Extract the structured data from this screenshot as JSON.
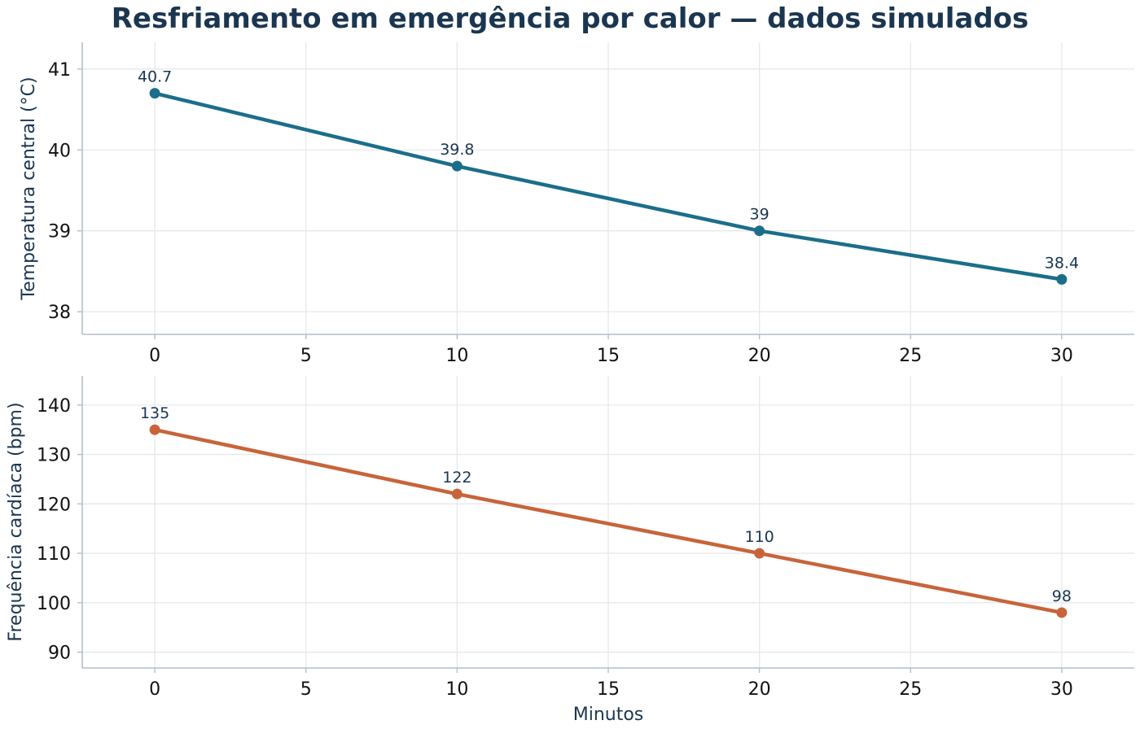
{
  "title": "Resfriamento em emergência por calor — dados simulados",
  "chart_data": [
    {
      "type": "line",
      "x": [
        0,
        10,
        20,
        30
      ],
      "y": [
        40.7,
        39.8,
        39.0,
        38.4
      ],
      "data_labels": [
        "40.7",
        "39.8",
        "39",
        "38.4"
      ],
      "ylabel": "Temperatura central (°C)",
      "xlabel": "",
      "xlim": [
        -2.4,
        32.4
      ],
      "ylim": [
        37.72,
        41.33
      ],
      "xticks": [
        0,
        5,
        10,
        15,
        20,
        25,
        30
      ],
      "xtick_labels": [
        "0",
        "5",
        "10",
        "15",
        "20",
        "25",
        "30"
      ],
      "yticks": [
        38,
        39,
        40,
        41
      ],
      "ytick_labels": [
        "38",
        "39",
        "40",
        "41"
      ],
      "color": "#1b6e8a",
      "grid": true
    },
    {
      "type": "line",
      "x": [
        0,
        10,
        20,
        30
      ],
      "y": [
        135,
        122,
        110,
        98
      ],
      "data_labels": [
        "135",
        "122",
        "110",
        "98"
      ],
      "ylabel": "Frequência cardíaca (bpm)",
      "xlabel": "Minutos",
      "xlim": [
        -2.4,
        32.4
      ],
      "ylim": [
        86.8,
        145.9
      ],
      "xticks": [
        0,
        5,
        10,
        15,
        20,
        25,
        30
      ],
      "xtick_labels": [
        "0",
        "5",
        "10",
        "15",
        "20",
        "25",
        "30"
      ],
      "yticks": [
        90,
        100,
        110,
        120,
        130,
        140
      ],
      "ytick_labels": [
        "90",
        "100",
        "110",
        "120",
        "130",
        "140"
      ],
      "color": "#c8643a",
      "grid": true
    }
  ]
}
